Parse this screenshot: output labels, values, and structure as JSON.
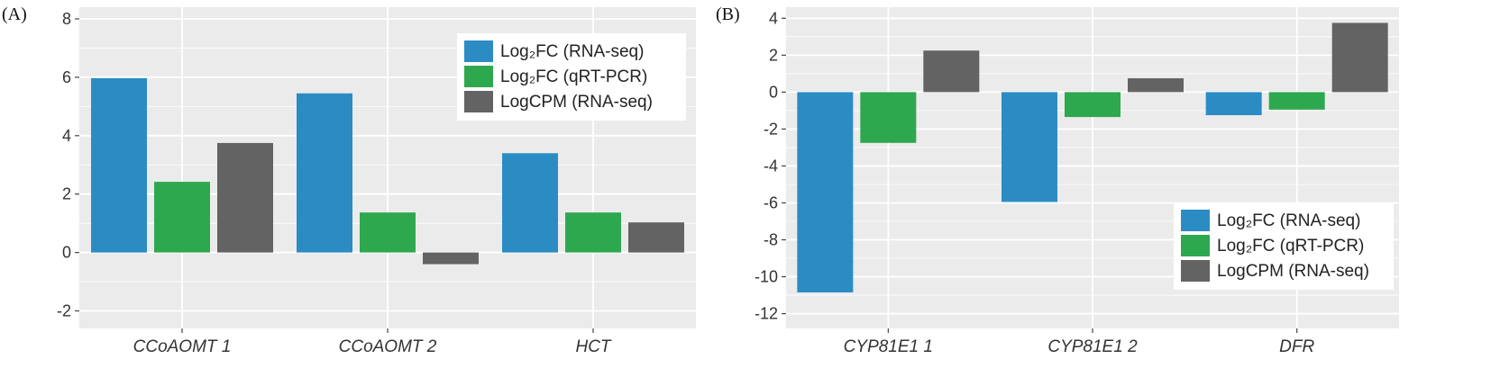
{
  "chart_data": [
    {
      "type": "bar",
      "panel_label": "(A)",
      "categories": [
        "CCoAOMT 1",
        "CCoAOMT 2",
        "HCT"
      ],
      "series": [
        {
          "name": "Log₂FC (RNA-seq)",
          "color": "#2b8cc4",
          "values": [
            5.97,
            5.45,
            3.4
          ]
        },
        {
          "name": "Log₂FC (qRT-PCR)",
          "color": "#2ea84f",
          "values": [
            2.42,
            1.37,
            1.37
          ]
        },
        {
          "name": "LogCPM (RNA-seq)",
          "color": "#636363",
          "values": [
            3.75,
            -0.4,
            1.03
          ]
        }
      ],
      "ylim": [
        -2.6,
        8.4
      ],
      "yticks": [
        -2,
        0,
        2,
        4,
        6,
        8
      ],
      "ytick_labels": [
        "-2",
        "0",
        "2",
        "4",
        "6",
        "8"
      ],
      "grid": true,
      "legend": "top-right",
      "title": "",
      "xlabel": "",
      "ylabel": ""
    },
    {
      "type": "bar",
      "panel_label": "(B)",
      "categories": [
        "CYP81E1 1",
        "CYP81E1 2",
        "DFR"
      ],
      "series": [
        {
          "name": "Log₂FC (RNA-seq)",
          "color": "#2b8cc4",
          "values": [
            -10.85,
            -5.95,
            -1.25
          ]
        },
        {
          "name": "Log₂FC (qRT-PCR)",
          "color": "#2ea84f",
          "values": [
            -2.75,
            -1.35,
            -0.95
          ]
        },
        {
          "name": "LogCPM (RNA-seq)",
          "color": "#636363",
          "values": [
            2.25,
            0.75,
            3.75
          ]
        }
      ],
      "ylim": [
        -12.8,
        4.6
      ],
      "yticks": [
        -12,
        -10,
        -8,
        -6,
        -4,
        -2,
        0,
        2,
        4
      ],
      "ytick_labels": [
        "-12",
        "-10",
        "-8",
        "-6",
        "-4",
        "-2",
        "0",
        "2",
        "4"
      ],
      "grid": true,
      "legend": "bottom-right",
      "title": "",
      "xlabel": "",
      "ylabel": ""
    }
  ],
  "colors": {
    "panel_bg": "#ebebeb",
    "grid": "#ffffff"
  }
}
